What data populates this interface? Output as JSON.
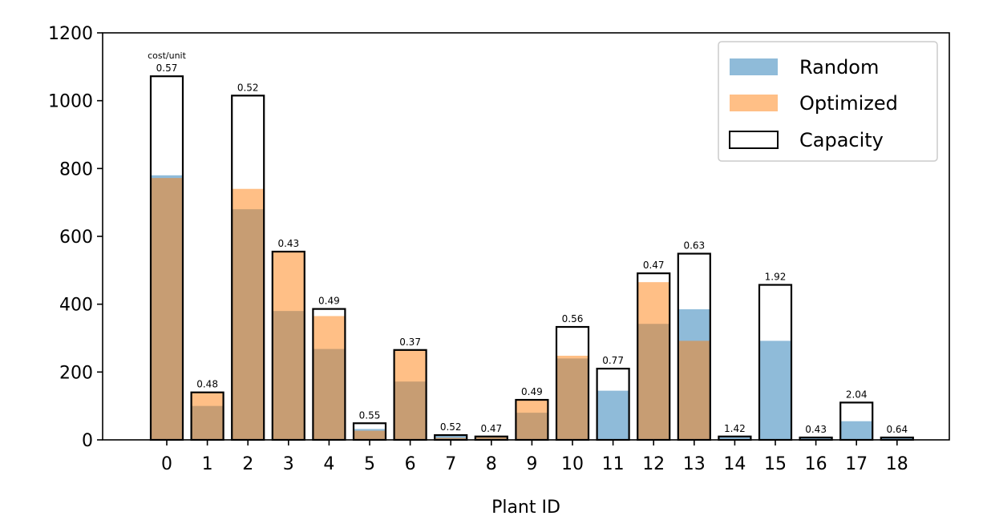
{
  "chart_data": {
    "type": "bar",
    "xlabel": "Plant ID",
    "ylabel": "",
    "ylim": [
      0,
      1200
    ],
    "yticks": [
      "0",
      "200",
      "400",
      "600",
      "800",
      "1000",
      "1200"
    ],
    "categories": [
      "0",
      "1",
      "2",
      "3",
      "4",
      "5",
      "6",
      "7",
      "8",
      "9",
      "10",
      "11",
      "12",
      "13",
      "14",
      "15",
      "16",
      "17",
      "18"
    ],
    "cost_header": "cost/unit",
    "series": [
      {
        "name": "Random",
        "color": "#1f77b4",
        "values": [
          780,
          100,
          680,
          380,
          268,
          32,
          172,
          14,
          8,
          80,
          240,
          145,
          342,
          385,
          10,
          292,
          5,
          55,
          6
        ]
      },
      {
        "name": "Optimized",
        "color": "#ff7f0e",
        "values": [
          772,
          140,
          740,
          555,
          365,
          27,
          265,
          6,
          10,
          118,
          248,
          0,
          465,
          292,
          0,
          0,
          0,
          0,
          0
        ]
      },
      {
        "name": "Capacity",
        "color": "#000000",
        "values": [
          1072,
          140,
          1015,
          555,
          386,
          49,
          265,
          14,
          10,
          118,
          333,
          210,
          491,
          549,
          10,
          457,
          7,
          110,
          7
        ]
      }
    ],
    "cost_labels": [
      "0.57",
      "0.48",
      "0.52",
      "0.43",
      "0.49",
      "0.55",
      "0.37",
      "0.52",
      "0.47",
      "0.49",
      "0.56",
      "0.77",
      "0.47",
      "0.63",
      "1.42",
      "1.92",
      "0.43",
      "2.04",
      "0.64"
    ],
    "legend_position": "top-right",
    "grid": false
  }
}
